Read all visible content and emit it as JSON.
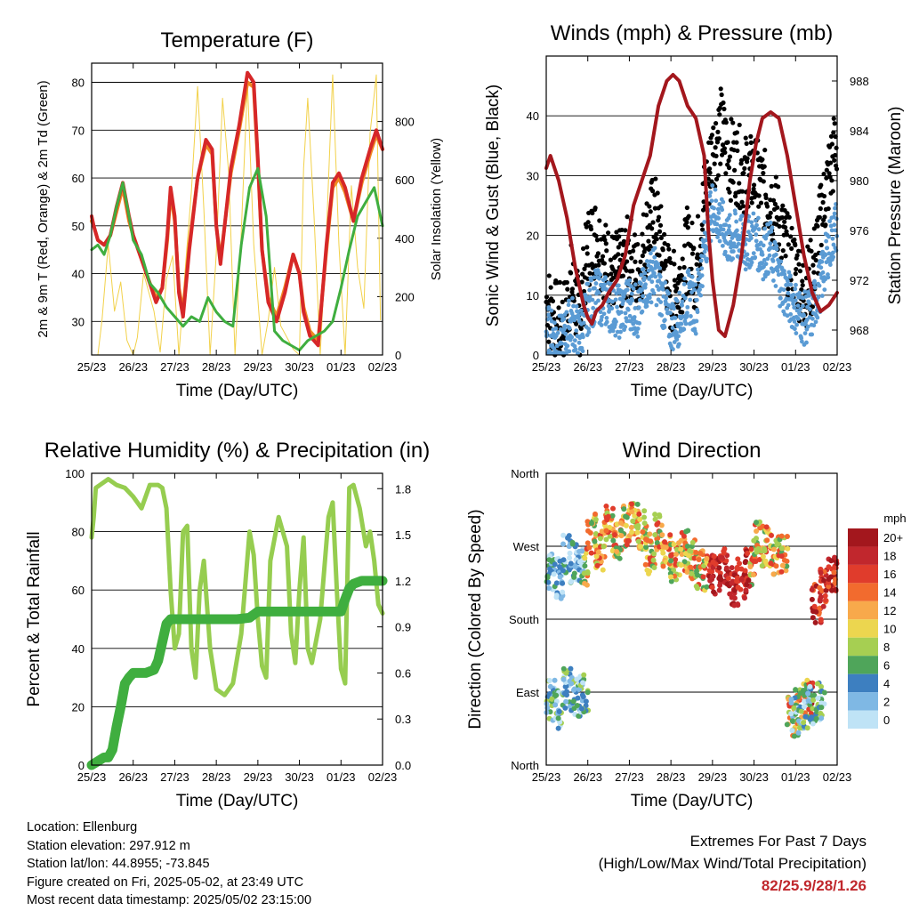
{
  "colors": {
    "red": "#d62728",
    "orange": "#f08a24",
    "green": "#3fae3f",
    "yellow": "#f2d14a",
    "blue": "#5a9bd4",
    "black": "#000000",
    "maroon": "#a3171d",
    "rh_green": "#96cd50",
    "precip_green": "#3fae3f",
    "extremes": "#c0282d"
  },
  "x_ticks": [
    "25/23",
    "26/23",
    "27/23",
    "28/23",
    "29/23",
    "30/23",
    "01/23",
    "02/23"
  ],
  "info": {
    "location": "Location: Ellenburg",
    "elevation": "Station elevation: 297.912 m",
    "latlon": "Station lat/lon: 44.8955; -73.845",
    "created": "Figure created on Fri, 2025-05-02, at 23:49 UTC",
    "recent": "Most recent data timestamp: 2025/05/02 23:15:00"
  },
  "extremes": {
    "line1": "Extremes For Past 7 Days",
    "line2": "(High/Low/Max Wind/Total Precipitation)",
    "values": "82/25.9/28/1.26"
  },
  "chart_data": [
    {
      "type": "line",
      "title": "Temperature (F)",
      "xlabel": "Time (Day/UTC)",
      "ylabel": "2m & 9m T (Red, Orange) & 2m Td (Green)",
      "y2label": "Solar Insolation (Yellow)",
      "ylim": [
        23,
        84
      ],
      "y2lim": [
        0,
        1000
      ],
      "yticks": [
        30,
        40,
        50,
        60,
        70,
        80
      ],
      "y2ticks": [
        0,
        200,
        400,
        600,
        800
      ],
      "xlim": [
        0,
        7
      ],
      "grid": true,
      "series": [
        {
          "x": [
            0,
            0.05,
            0.15,
            0.3,
            0.45,
            0.6,
            0.75,
            0.9,
            1.0,
            1.2,
            1.4,
            1.55,
            1.7,
            1.82,
            1.9,
            2.0,
            2.1,
            2.2,
            2.35,
            2.55,
            2.75,
            2.9,
            3.0,
            3.1,
            3.2,
            3.35,
            3.55,
            3.75,
            3.9,
            4.0,
            4.1,
            4.25,
            4.45,
            4.65,
            4.85,
            5.0,
            5.1,
            5.25,
            5.45,
            5.65,
            5.8,
            5.95,
            6.1,
            6.3,
            6.5,
            6.7,
            6.85,
            7.0
          ],
          "values": [
            52,
            50,
            47,
            46,
            48,
            54,
            59,
            52,
            48,
            43,
            38,
            34,
            37,
            48,
            58,
            52,
            36,
            31,
            45,
            60,
            68,
            66,
            50,
            42,
            50,
            62,
            71,
            82,
            80,
            64,
            45,
            34,
            30,
            36,
            44,
            40,
            32,
            27,
            25,
            46,
            59,
            61,
            58,
            51,
            60,
            66,
            70,
            66
          ]
        },
        {
          "x": [
            0,
            0.05,
            0.15,
            0.3,
            0.45,
            0.6,
            0.75,
            0.9,
            1.0,
            1.2,
            1.4,
            1.55,
            1.7,
            1.82,
            1.9,
            2.0,
            2.1,
            2.2,
            2.35,
            2.55,
            2.75,
            2.9,
            3.0,
            3.1,
            3.2,
            3.35,
            3.55,
            3.75,
            3.9,
            4.0,
            4.1,
            4.25,
            4.45,
            4.65,
            4.85,
            5.0,
            5.1,
            5.25,
            5.45,
            5.65,
            5.8,
            5.95,
            6.1,
            6.3,
            6.5,
            6.7,
            6.85,
            7.0
          ],
          "values": [
            51,
            50,
            47,
            46,
            48,
            53,
            58,
            51,
            48,
            43,
            38,
            35,
            37,
            47,
            57,
            51,
            37,
            32,
            46,
            60,
            67,
            65,
            50,
            43,
            50,
            61,
            70,
            80,
            79,
            63,
            45,
            35,
            31,
            37,
            44,
            40,
            33,
            28,
            26,
            45,
            58,
            60,
            57,
            51,
            59,
            65,
            69,
            66
          ]
        },
        {
          "x": [
            0,
            0.15,
            0.3,
            0.45,
            0.6,
            0.75,
            0.9,
            1.0,
            1.2,
            1.4,
            1.6,
            1.8,
            2.0,
            2.2,
            2.4,
            2.6,
            2.8,
            3.0,
            3.2,
            3.4,
            3.6,
            3.8,
            4.0,
            4.2,
            4.4,
            4.6,
            4.8,
            5.0,
            5.2,
            5.4,
            5.6,
            5.8,
            6.0,
            6.2,
            6.4,
            6.6,
            6.8,
            7.0
          ],
          "values": [
            45,
            46,
            44,
            48,
            54,
            59,
            52,
            47,
            44,
            38,
            36,
            33,
            31,
            29,
            31,
            30,
            35,
            32,
            30,
            29,
            46,
            58,
            62,
            52,
            28,
            26,
            25,
            24,
            26,
            27,
            28,
            30,
            37,
            45,
            52,
            55,
            58,
            50
          ]
        },
        {
          "x": [
            0.15,
            0.25,
            0.4,
            0.55,
            0.7,
            0.85,
            1.0,
            1.1,
            1.25,
            1.5,
            1.65,
            1.8,
            1.95,
            2.1,
            2.25,
            2.4,
            2.55,
            2.7,
            2.85,
            3.0,
            3.15,
            3.3,
            3.45,
            3.6,
            3.75,
            3.9,
            4.1,
            4.25,
            4.4,
            4.55,
            4.7,
            4.85,
            5.0,
            5.1,
            5.2,
            5.35,
            5.5,
            5.65,
            5.8,
            5.95,
            6.1,
            6.25,
            6.4,
            6.55,
            6.7,
            6.85,
            6.95
          ],
          "values": [
            0,
            120,
            380,
            150,
            250,
            50,
            0,
            60,
            280,
            150,
            10,
            260,
            340,
            0,
            290,
            560,
            920,
            500,
            0,
            350,
            880,
            620,
            0,
            420,
            930,
            380,
            0,
            120,
            300,
            100,
            60,
            20,
            0,
            640,
            880,
            480,
            0,
            420,
            960,
            380,
            0,
            580,
            300,
            160,
            760,
            960,
            120
          ]
        }
      ]
    },
    {
      "type": "scatter",
      "title": "Winds (mph) & Pressure (mb)",
      "xlabel": "Time (Day/UTC)",
      "ylabel": "Sonic Wind & Gust (Blue, Black)",
      "y2label": "Station Pressure (Maroon)",
      "ylim": [
        0,
        50
      ],
      "y2lim": [
        966,
        990
      ],
      "yticks": [
        0,
        10,
        20,
        30,
        40
      ],
      "y2ticks": [
        968,
        972,
        976,
        980,
        984,
        988
      ],
      "xlim": [
        0,
        7
      ],
      "grid": true,
      "series": [
        {
          "x": [
            0,
            0.2,
            0.4,
            0.6,
            0.8,
            1.0,
            1.2,
            1.4,
            1.6,
            1.8,
            2.0,
            2.2,
            2.4,
            2.6,
            2.8,
            3.0,
            3.2,
            3.4,
            3.6,
            3.8,
            4.0,
            4.2,
            4.4,
            4.6,
            4.8,
            5.0,
            5.2,
            5.4,
            5.6,
            5.8,
            6.0,
            6.2,
            6.4,
            6.6,
            6.8,
            7.0
          ],
          "values": [
            4,
            3,
            2,
            6,
            3,
            8,
            10,
            9,
            8,
            7,
            9,
            7,
            12,
            14,
            9,
            5,
            6,
            10,
            8,
            18,
            25,
            22,
            19,
            20,
            18,
            20,
            17,
            18,
            13,
            10,
            8,
            6,
            7,
            12,
            18,
            22
          ]
        },
        {
          "x": [
            0,
            0.2,
            0.4,
            0.6,
            0.8,
            1.0,
            1.2,
            1.4,
            1.6,
            1.8,
            2.0,
            2.2,
            2.4,
            2.6,
            2.8,
            3.0,
            3.2,
            3.4,
            3.6,
            3.8,
            4.0,
            4.2,
            4.4,
            4.6,
            4.8,
            5.0,
            5.2,
            5.4,
            5.6,
            5.8,
            6.0,
            6.2,
            6.4,
            6.6,
            6.8,
            7.0
          ],
          "values": [
            9,
            6,
            5,
            12,
            6,
            18,
            20,
            16,
            14,
            14,
            17,
            13,
            20,
            24,
            17,
            10,
            12,
            18,
            14,
            26,
            34,
            38,
            33,
            32,
            30,
            30,
            28,
            26,
            22,
            17,
            14,
            11,
            13,
            22,
            30,
            36
          ]
        },
        {
          "x": [
            0,
            0.1,
            0.3,
            0.5,
            0.7,
            0.9,
            1.0,
            1.1,
            1.2,
            1.35,
            1.5,
            1.7,
            1.9,
            2.1,
            2.3,
            2.5,
            2.7,
            2.9,
            3.05,
            3.2,
            3.4,
            3.6,
            3.8,
            3.9,
            4.0,
            4.15,
            4.3,
            4.5,
            4.7,
            4.9,
            5.05,
            5.2,
            5.4,
            5.6,
            5.8,
            6.0,
            6.2,
            6.4,
            6.6,
            6.8,
            7.0
          ],
          "values": [
            981,
            982,
            980,
            977,
            973,
            970,
            969,
            968.5,
            969.5,
            970,
            971,
            972,
            974,
            978,
            980,
            982,
            986,
            988,
            988.5,
            988,
            986,
            985,
            982,
            976,
            972,
            968,
            967.5,
            970,
            974,
            980,
            983,
            985,
            985.5,
            985,
            982,
            978,
            974,
            971,
            969.5,
            970,
            971
          ]
        }
      ]
    },
    {
      "type": "line",
      "title": "Relative Humidity (%) & Precipitation (in)",
      "xlabel": "Time (Day/UTC)",
      "ylabel": "Percent & Total Rainfall",
      "ylim": [
        0,
        100
      ],
      "y2lim": [
        0,
        1.9
      ],
      "yticks": [
        0,
        20,
        40,
        60,
        80,
        100
      ],
      "y2ticks": [
        "0.0",
        "0.3",
        "0.6",
        "0.9",
        "1.2",
        "1.5",
        "1.8"
      ],
      "xlim": [
        0,
        7
      ],
      "grid": true,
      "series": [
        {
          "x": [
            0,
            0.05,
            0.1,
            0.2,
            0.4,
            0.6,
            0.8,
            1.0,
            1.2,
            1.4,
            1.6,
            1.7,
            1.8,
            1.9,
            2.0,
            2.1,
            2.2,
            2.3,
            2.4,
            2.5,
            2.6,
            2.7,
            2.85,
            3.0,
            3.2,
            3.4,
            3.6,
            3.8,
            3.9,
            4.0,
            4.1,
            4.2,
            4.3,
            4.5,
            4.7,
            4.8,
            4.9,
            5.0,
            5.1,
            5.2,
            5.3,
            5.5,
            5.7,
            5.8,
            5.9,
            6.0,
            6.1,
            6.2,
            6.3,
            6.45,
            6.6,
            6.7,
            6.8,
            6.9,
            7.0
          ],
          "values": [
            78,
            85,
            95,
            96,
            98,
            96,
            95,
            92,
            88,
            96,
            96,
            95,
            88,
            60,
            40,
            45,
            80,
            82,
            40,
            30,
            60,
            70,
            40,
            26,
            24,
            28,
            45,
            80,
            72,
            50,
            34,
            30,
            70,
            85,
            75,
            45,
            35,
            60,
            78,
            40,
            35,
            50,
            85,
            90,
            60,
            33,
            28,
            95,
            96,
            88,
            75,
            80,
            70,
            55,
            52
          ]
        },
        {
          "x": [
            0,
            0.3,
            0.4,
            0.5,
            0.6,
            0.7,
            0.8,
            0.9,
            1.0,
            1.3,
            1.5,
            1.6,
            1.7,
            1.8,
            1.9,
            2.0,
            2.5,
            3.0,
            3.5,
            3.8,
            4.0,
            4.2,
            4.5,
            5.0,
            5.5,
            6.0,
            6.1,
            6.2,
            6.3,
            6.5,
            7.0
          ],
          "values": [
            0,
            0.05,
            0.05,
            0.1,
            0.25,
            0.38,
            0.53,
            0.57,
            0.6,
            0.6,
            0.62,
            0.68,
            0.8,
            0.92,
            0.95,
            0.95,
            0.95,
            0.95,
            0.95,
            0.96,
            1.0,
            1.0,
            1.0,
            1.0,
            1.0,
            1.0,
            1.08,
            1.15,
            1.18,
            1.2,
            1.2
          ]
        }
      ]
    },
    {
      "type": "scatter",
      "title": "Wind Direction",
      "xlabel": "Time (Day/UTC)",
      "ylabel": "Direction (Colored By Speed)",
      "yticks": [
        "North",
        "East",
        "South",
        "West",
        "North"
      ],
      "ylim": [
        0,
        360
      ],
      "xlim": [
        0,
        7
      ],
      "grid": true,
      "colorbar": {
        "title": "mph",
        "labels": [
          "20+",
          "18",
          "16",
          "14",
          "12",
          "10",
          "8",
          "6",
          "4",
          "2",
          "0"
        ],
        "colors": [
          "#a3171d",
          "#c1272d",
          "#e03c2c",
          "#f26b2e",
          "#f8a94b",
          "#ecd64f",
          "#a6cf52",
          "#4fa55a",
          "#3d7fc0",
          "#7fb8e4",
          "#bfe3f6"
        ]
      },
      "series": [
        {
          "x": [
            0.1,
            0.3,
            0.5,
            0.7,
            0.9,
            1.1,
            1.3,
            1.5,
            1.7,
            1.9,
            2.1,
            2.3,
            2.5,
            2.7,
            2.9,
            3.1,
            3.3,
            3.5,
            3.7,
            3.9,
            4.1,
            4.3,
            4.5,
            4.7,
            4.9,
            5.1,
            5.3,
            5.5,
            5.7,
            5.9,
            6.1,
            6.3,
            6.5,
            6.7,
            6.9
          ],
          "values": [
            240,
            230,
            260,
            250,
            245,
            285,
            265,
            300,
            275,
            295,
            300,
            290,
            260,
            285,
            265,
            250,
            265,
            255,
            240,
            240,
            235,
            245,
            220,
            230,
            245,
            275,
            270,
            260,
            260,
            60,
            70,
            80,
            200,
            220,
            235
          ]
        },
        {
          "x": [
            0.1,
            0.3,
            0.5,
            0.7,
            0.9,
            6.0,
            6.2,
            6.4,
            6.6
          ],
          "values": [
            80,
            70,
            95,
            85,
            90,
            60,
            70,
            75,
            80
          ]
        }
      ]
    }
  ]
}
